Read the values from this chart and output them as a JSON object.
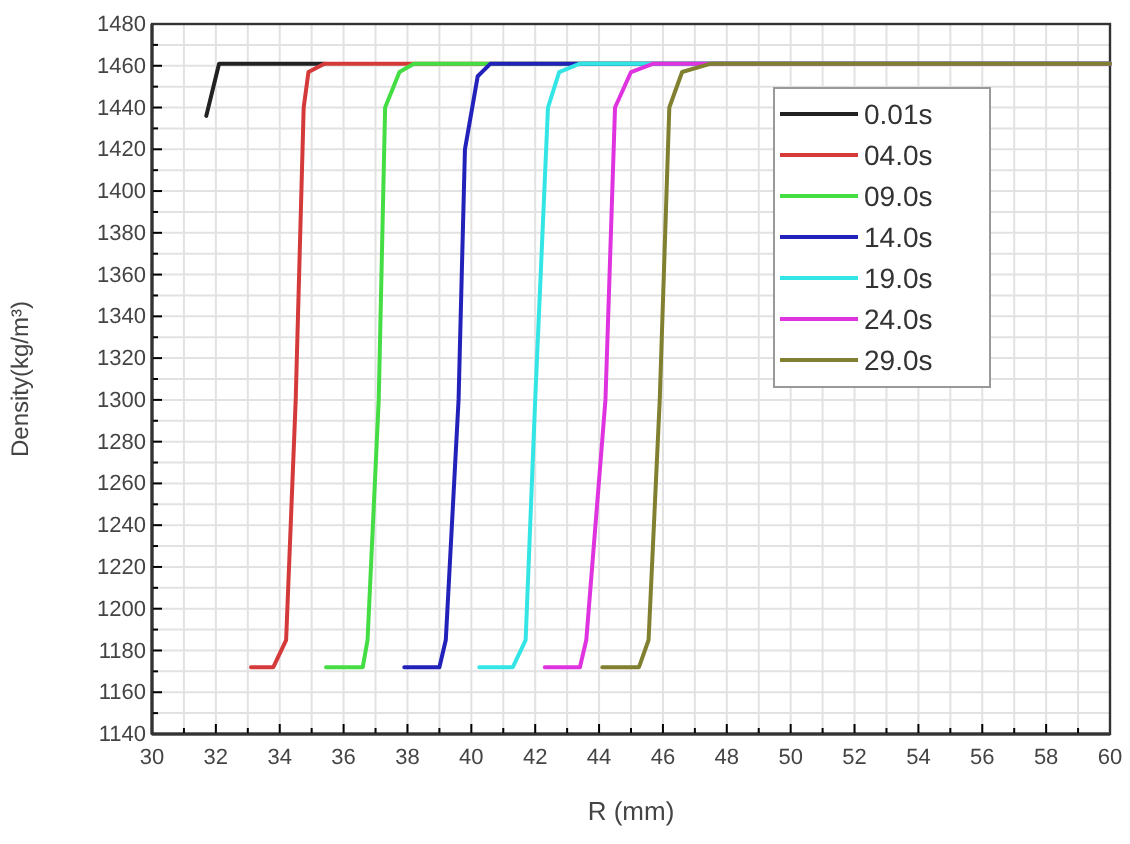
{
  "chart_data": {
    "type": "line",
    "xlabel": "R (mm)",
    "ylabel": "Density(kg/m³)",
    "xlim": [
      30,
      60
    ],
    "ylim": [
      1140,
      1480
    ],
    "xticks": [
      30,
      {
        "value": 31,
        "label": null
      },
      32,
      {
        "value": 33,
        "label": null
      },
      34,
      {
        "value": 35,
        "label": null
      },
      36,
      {
        "value": 37,
        "label": null
      },
      38,
      {
        "value": 39,
        "label": null
      },
      40,
      {
        "value": 41,
        "label": null
      },
      42,
      {
        "value": 43,
        "label": null
      },
      44,
      {
        "value": 45,
        "label": null
      },
      46,
      {
        "value": 47,
        "label": null
      },
      48,
      {
        "value": 49,
        "label": null
      },
      50,
      {
        "value": 51,
        "label": null
      },
      52,
      {
        "value": 53,
        "label": null
      },
      54,
      {
        "value": 55,
        "label": null
      },
      56,
      {
        "value": 57,
        "label": null
      },
      58,
      {
        "value": 59,
        "label": null
      },
      60
    ],
    "yticks": [
      1140,
      {
        "value": 1150,
        "label": null
      },
      1160,
      {
        "value": 1170,
        "label": null
      },
      1180,
      {
        "value": 1190,
        "label": null
      },
      1200,
      {
        "value": 1210,
        "label": null
      },
      1220,
      {
        "value": 1230,
        "label": null
      },
      1240,
      {
        "value": 1250,
        "label": null
      },
      1260,
      {
        "value": 1270,
        "label": null
      },
      1280,
      {
        "value": 1290,
        "label": null
      },
      1300,
      {
        "value": 1310,
        "label": null
      },
      1320,
      {
        "value": 1330,
        "label": null
      },
      1340,
      {
        "value": 1350,
        "label": null
      },
      1360,
      {
        "value": 1370,
        "label": null
      },
      1380,
      {
        "value": 1390,
        "label": null
      },
      1400,
      {
        "value": 1410,
        "label": null
      },
      1420,
      {
        "value": 1430,
        "label": null
      },
      1440,
      {
        "value": 1450,
        "label": null
      },
      1460,
      {
        "value": 1470,
        "label": null
      },
      1480
    ],
    "grid": true,
    "legend": "top right",
    "marker": "none",
    "line_style": "solid",
    "series": [
      {
        "name": "0.01s",
        "color": "#222222",
        "x": [
          31.7,
          32.1,
          35.4
        ],
        "values": [
          1436,
          1461,
          1461
        ]
      },
      {
        "name": "04.0s",
        "color": "#d43a3a",
        "x": [
          33.1,
          33.8,
          34.2,
          34.5,
          34.75,
          34.9,
          35.4,
          60
        ],
        "values": [
          1172,
          1172,
          1185,
          1300,
          1440,
          1457,
          1461,
          1461
        ]
      },
      {
        "name": "09.0s",
        "color": "#44dd44",
        "x": [
          35.45,
          36.6,
          36.75,
          37.1,
          37.3,
          37.75,
          38.2,
          60
        ],
        "values": [
          1172,
          1172,
          1185,
          1300,
          1440,
          1457,
          1461,
          1461
        ]
      },
      {
        "name": "14.0s",
        "color": "#2222bb",
        "x": [
          37.9,
          39.0,
          39.2,
          39.6,
          39.8,
          40.2,
          40.6,
          60
        ],
        "values": [
          1172,
          1172,
          1185,
          1300,
          1420,
          1455,
          1461,
          1461
        ]
      },
      {
        "name": "19.0s",
        "color": "#33e5e5",
        "x": [
          40.25,
          41.3,
          41.7,
          42.0,
          42.4,
          42.75,
          43.4,
          60
        ],
        "values": [
          1172,
          1172,
          1185,
          1300,
          1440,
          1457,
          1461,
          1461
        ]
      },
      {
        "name": "24.0s",
        "color": "#e033e0",
        "x": [
          42.3,
          43.4,
          43.6,
          44.2,
          44.5,
          45.0,
          45.7,
          60
        ],
        "values": [
          1172,
          1172,
          1185,
          1300,
          1440,
          1457,
          1461,
          1461
        ]
      },
      {
        "name": "29.0s",
        "color": "#808030",
        "x": [
          44.1,
          45.25,
          45.55,
          45.9,
          46.2,
          46.6,
          47.5,
          60
        ],
        "values": [
          1172,
          1172,
          1185,
          1300,
          1440,
          1457,
          1461,
          1461
        ]
      }
    ]
  }
}
